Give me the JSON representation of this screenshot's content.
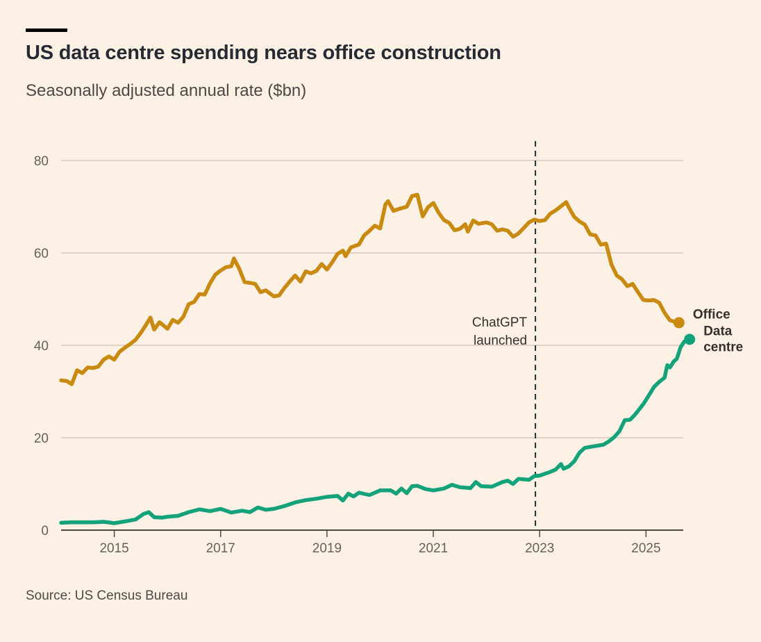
{
  "chart_data": {
    "type": "line",
    "title": "US data centre spending nears office construction",
    "subtitle": "Seasonally adjusted annual rate ($bn)",
    "source": "Source: US Census Bureau",
    "xlabel": "",
    "ylabel": "",
    "xlim": [
      2014.0,
      2025.7
    ],
    "ylim": [
      0,
      80
    ],
    "x_ticks": [
      2015,
      2017,
      2019,
      2021,
      2023,
      2025
    ],
    "y_ticks": [
      0,
      20,
      40,
      60,
      80
    ],
    "grid": "horizontal",
    "annotations": [
      {
        "text_lines": [
          "ChatGPT",
          "launched"
        ],
        "x": 2022.92,
        "style": "dashed-vertical-line"
      }
    ],
    "series": [
      {
        "name": "Office",
        "color": "#c98a12",
        "end_marker": true,
        "points": [
          [
            2014.0,
            32.4
          ],
          [
            2014.1,
            32.3
          ],
          [
            2014.2,
            31.6
          ],
          [
            2014.3,
            34.6
          ],
          [
            2014.4,
            34.0
          ],
          [
            2014.5,
            35.2
          ],
          [
            2014.6,
            35.1
          ],
          [
            2014.7,
            35.4
          ],
          [
            2014.8,
            36.9
          ],
          [
            2014.9,
            37.6
          ],
          [
            2015.0,
            36.9
          ],
          [
            2015.1,
            38.6
          ],
          [
            2015.2,
            39.5
          ],
          [
            2015.3,
            40.3
          ],
          [
            2015.4,
            41.2
          ],
          [
            2015.5,
            42.7
          ],
          [
            2015.6,
            44.5
          ],
          [
            2015.68,
            46.0
          ],
          [
            2015.75,
            43.4
          ],
          [
            2015.85,
            45.0
          ],
          [
            2016.0,
            43.6
          ],
          [
            2016.1,
            45.5
          ],
          [
            2016.2,
            44.9
          ],
          [
            2016.3,
            46.2
          ],
          [
            2016.4,
            48.9
          ],
          [
            2016.5,
            49.4
          ],
          [
            2016.6,
            51.1
          ],
          [
            2016.7,
            51.0
          ],
          [
            2016.8,
            53.4
          ],
          [
            2016.9,
            55.3
          ],
          [
            2017.0,
            56.2
          ],
          [
            2017.1,
            56.9
          ],
          [
            2017.2,
            57.1
          ],
          [
            2017.25,
            58.8
          ],
          [
            2017.35,
            56.6
          ],
          [
            2017.45,
            53.7
          ],
          [
            2017.55,
            53.5
          ],
          [
            2017.65,
            53.3
          ],
          [
            2017.75,
            51.5
          ],
          [
            2017.85,
            51.9
          ],
          [
            2018.0,
            50.6
          ],
          [
            2018.1,
            50.8
          ],
          [
            2018.2,
            52.4
          ],
          [
            2018.3,
            53.8
          ],
          [
            2018.4,
            55.1
          ],
          [
            2018.5,
            53.8
          ],
          [
            2018.6,
            56.0
          ],
          [
            2018.7,
            55.6
          ],
          [
            2018.8,
            56.1
          ],
          [
            2018.9,
            57.6
          ],
          [
            2019.0,
            56.4
          ],
          [
            2019.1,
            58.0
          ],
          [
            2019.2,
            59.8
          ],
          [
            2019.3,
            60.5
          ],
          [
            2019.35,
            59.3
          ],
          [
            2019.45,
            61.2
          ],
          [
            2019.6,
            61.8
          ],
          [
            2019.7,
            63.8
          ],
          [
            2019.8,
            64.8
          ],
          [
            2019.9,
            65.9
          ],
          [
            2020.0,
            65.3
          ],
          [
            2020.1,
            70.5
          ],
          [
            2020.15,
            71.2
          ],
          [
            2020.25,
            69.1
          ],
          [
            2020.35,
            69.5
          ],
          [
            2020.5,
            70.0
          ],
          [
            2020.6,
            72.3
          ],
          [
            2020.7,
            72.6
          ],
          [
            2020.8,
            67.9
          ],
          [
            2020.9,
            69.9
          ],
          [
            2021.0,
            70.8
          ],
          [
            2021.1,
            68.7
          ],
          [
            2021.2,
            67.1
          ],
          [
            2021.3,
            66.5
          ],
          [
            2021.4,
            64.9
          ],
          [
            2021.5,
            65.2
          ],
          [
            2021.6,
            66.2
          ],
          [
            2021.65,
            64.6
          ],
          [
            2021.75,
            67.0
          ],
          [
            2021.85,
            66.3
          ],
          [
            2022.0,
            66.6
          ],
          [
            2022.1,
            66.2
          ],
          [
            2022.2,
            64.8
          ],
          [
            2022.3,
            65.1
          ],
          [
            2022.4,
            64.8
          ],
          [
            2022.5,
            63.5
          ],
          [
            2022.6,
            64.2
          ],
          [
            2022.7,
            65.4
          ],
          [
            2022.8,
            66.6
          ],
          [
            2022.9,
            67.2
          ],
          [
            2023.0,
            66.9
          ],
          [
            2023.1,
            67.1
          ],
          [
            2023.2,
            68.5
          ],
          [
            2023.3,
            69.2
          ],
          [
            2023.4,
            70.1
          ],
          [
            2023.5,
            71.0
          ],
          [
            2023.55,
            69.8
          ],
          [
            2023.65,
            67.8
          ],
          [
            2023.75,
            66.8
          ],
          [
            2023.85,
            66.1
          ],
          [
            2023.95,
            64.0
          ],
          [
            2024.05,
            63.8
          ],
          [
            2024.15,
            61.8
          ],
          [
            2024.25,
            62.0
          ],
          [
            2024.35,
            57.5
          ],
          [
            2024.45,
            55.1
          ],
          [
            2024.55,
            54.3
          ],
          [
            2024.65,
            52.8
          ],
          [
            2024.75,
            53.3
          ],
          [
            2024.85,
            51.5
          ],
          [
            2024.95,
            49.8
          ],
          [
            2025.05,
            49.7
          ],
          [
            2025.15,
            49.8
          ],
          [
            2025.25,
            49.2
          ],
          [
            2025.35,
            47.0
          ],
          [
            2025.45,
            45.4
          ],
          [
            2025.55,
            45.1
          ],
          [
            2025.62,
            44.9
          ]
        ]
      },
      {
        "name": "Data centre",
        "label_lines": [
          "Data",
          "centre"
        ],
        "color": "#13a27a",
        "end_marker": true,
        "points": [
          [
            2014.0,
            1.6
          ],
          [
            2014.2,
            1.7
          ],
          [
            2014.4,
            1.7
          ],
          [
            2014.6,
            1.7
          ],
          [
            2014.8,
            1.8
          ],
          [
            2015.0,
            1.5
          ],
          [
            2015.2,
            1.9
          ],
          [
            2015.4,
            2.3
          ],
          [
            2015.55,
            3.5
          ],
          [
            2015.65,
            3.9
          ],
          [
            2015.75,
            2.8
          ],
          [
            2015.9,
            2.7
          ],
          [
            2016.0,
            2.9
          ],
          [
            2016.2,
            3.1
          ],
          [
            2016.4,
            3.9
          ],
          [
            2016.6,
            4.5
          ],
          [
            2016.8,
            4.1
          ],
          [
            2017.0,
            4.6
          ],
          [
            2017.2,
            3.8
          ],
          [
            2017.4,
            4.2
          ],
          [
            2017.55,
            3.9
          ],
          [
            2017.7,
            4.9
          ],
          [
            2017.85,
            4.4
          ],
          [
            2018.0,
            4.6
          ],
          [
            2018.2,
            5.2
          ],
          [
            2018.4,
            6.0
          ],
          [
            2018.6,
            6.5
          ],
          [
            2018.8,
            6.8
          ],
          [
            2019.0,
            7.2
          ],
          [
            2019.2,
            7.4
          ],
          [
            2019.3,
            6.4
          ],
          [
            2019.4,
            7.9
          ],
          [
            2019.5,
            7.3
          ],
          [
            2019.6,
            8.1
          ],
          [
            2019.8,
            7.6
          ],
          [
            2020.0,
            8.6
          ],
          [
            2020.2,
            8.6
          ],
          [
            2020.3,
            7.9
          ],
          [
            2020.4,
            9.0
          ],
          [
            2020.5,
            8.0
          ],
          [
            2020.6,
            9.5
          ],
          [
            2020.7,
            9.6
          ],
          [
            2020.85,
            8.9
          ],
          [
            2021.0,
            8.6
          ],
          [
            2021.2,
            9.0
          ],
          [
            2021.35,
            9.8
          ],
          [
            2021.5,
            9.3
          ],
          [
            2021.7,
            9.1
          ],
          [
            2021.8,
            10.4
          ],
          [
            2021.9,
            9.5
          ],
          [
            2022.1,
            9.4
          ],
          [
            2022.3,
            10.4
          ],
          [
            2022.4,
            10.7
          ],
          [
            2022.5,
            10.0
          ],
          [
            2022.6,
            11.1
          ],
          [
            2022.8,
            10.9
          ],
          [
            2022.9,
            11.7
          ],
          [
            2023.0,
            11.8
          ],
          [
            2023.2,
            12.6
          ],
          [
            2023.3,
            13.1
          ],
          [
            2023.4,
            14.3
          ],
          [
            2023.45,
            13.3
          ],
          [
            2023.55,
            13.8
          ],
          [
            2023.65,
            14.9
          ],
          [
            2023.75,
            16.8
          ],
          [
            2023.85,
            17.8
          ],
          [
            2024.0,
            18.1
          ],
          [
            2024.2,
            18.5
          ],
          [
            2024.3,
            19.2
          ],
          [
            2024.4,
            20.1
          ],
          [
            2024.5,
            21.4
          ],
          [
            2024.6,
            23.8
          ],
          [
            2024.7,
            23.9
          ],
          [
            2024.8,
            25.1
          ],
          [
            2024.95,
            27.3
          ],
          [
            2025.05,
            29.1
          ],
          [
            2025.15,
            31.0
          ],
          [
            2025.25,
            32.1
          ],
          [
            2025.35,
            33.0
          ],
          [
            2025.4,
            35.7
          ],
          [
            2025.45,
            35.2
          ],
          [
            2025.52,
            36.5
          ],
          [
            2025.58,
            37.1
          ],
          [
            2025.65,
            39.6
          ],
          [
            2025.72,
            40.8
          ],
          [
            2025.82,
            41.3
          ]
        ]
      }
    ]
  }
}
